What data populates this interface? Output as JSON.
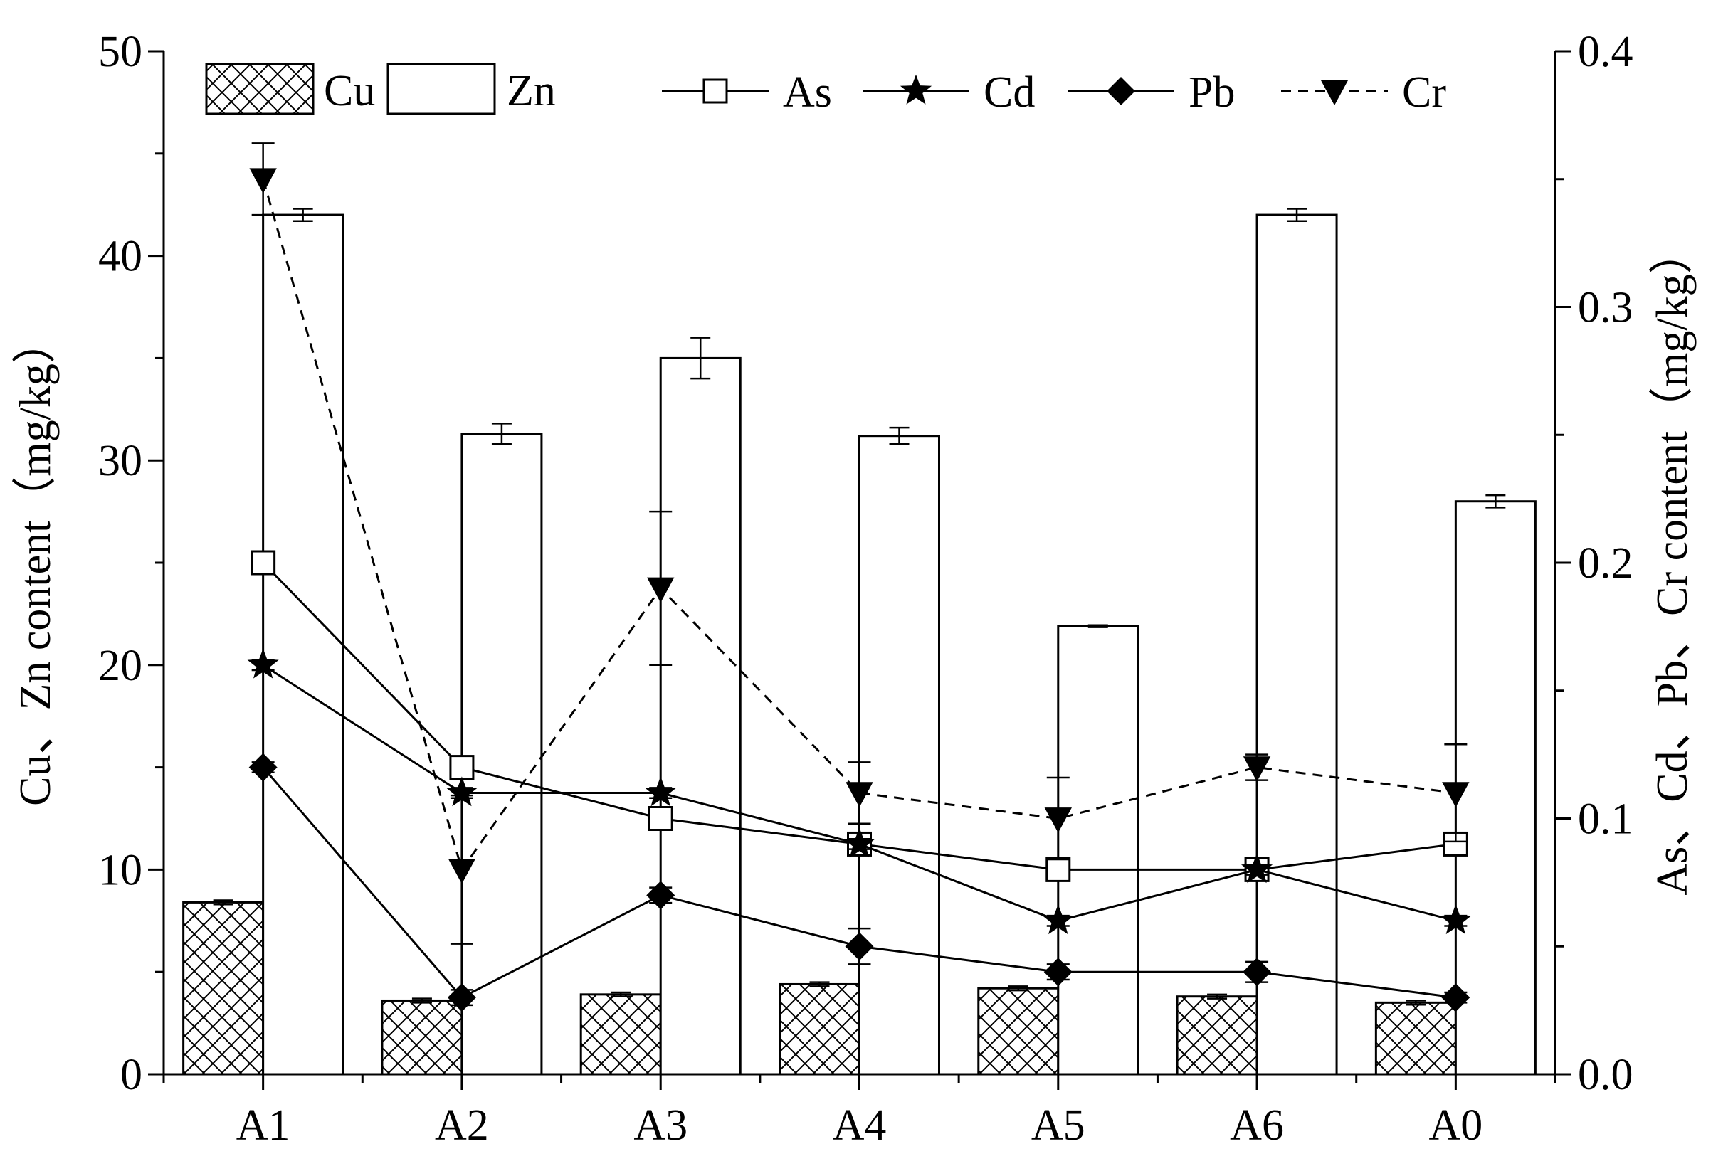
{
  "chart_data": {
    "type": "bar",
    "categories": [
      "A1",
      "A2",
      "A3",
      "A4",
      "A5",
      "A6",
      "A0"
    ],
    "left_axis": {
      "label": "Cu、Zn content（mg/kg）",
      "ylim": [
        0,
        50
      ],
      "ticks": [
        "0",
        "10",
        "20",
        "30",
        "40",
        "50"
      ]
    },
    "right_axis": {
      "label": "As、Cd、Pb、Cr content（mg/kg）",
      "ylim": [
        0.0,
        0.4
      ],
      "ticks": [
        "0.0",
        "0.1",
        "0.2",
        "0.3",
        "0.4"
      ]
    },
    "bar_series": [
      {
        "name": "Cu",
        "pattern": "crosshatch",
        "values": [
          8.4,
          3.6,
          3.9,
          4.4,
          4.2,
          3.8,
          3.5
        ],
        "errors": [
          0.1,
          0.1,
          0.1,
          0.1,
          0.1,
          0.1,
          0.1
        ]
      },
      {
        "name": "Zn",
        "pattern": "none",
        "values": [
          42.0,
          31.3,
          35.0,
          31.2,
          21.9,
          42.0,
          28.0
        ],
        "errors": [
          0.3,
          0.5,
          1.0,
          0.4,
          0.05,
          0.3,
          0.3
        ]
      }
    ],
    "line_series": [
      {
        "name": "As",
        "marker": "open-square",
        "style": "solid",
        "values": [
          0.2,
          0.12,
          0.1,
          0.09,
          0.08,
          0.08,
          0.09
        ],
        "errors": [
          0.002,
          0.002,
          0.003,
          0.002,
          0.002,
          0.002,
          0.003
        ]
      },
      {
        "name": "Cd",
        "marker": "star",
        "style": "solid",
        "values": [
          0.16,
          0.11,
          0.11,
          0.09,
          0.06,
          0.08,
          0.06
        ],
        "errors": [
          0.002,
          0.002,
          0.002,
          0.002,
          0.002,
          0.002,
          0.002
        ]
      },
      {
        "name": "Pb",
        "marker": "diamond",
        "style": "solid",
        "values": [
          0.12,
          0.03,
          0.07,
          0.05,
          0.04,
          0.04,
          0.03
        ],
        "errors": [
          0.002,
          0.003,
          0.003,
          0.007,
          0.003,
          0.004,
          0.002
        ]
      },
      {
        "name": "Cr",
        "marker": "down-triangle",
        "style": "dashed",
        "values": [
          0.35,
          0.08,
          0.19,
          0.11,
          0.1,
          0.12,
          0.11
        ],
        "errors": [
          0.014,
          0.029,
          0.03,
          0.012,
          0.016,
          0.005,
          0.019
        ]
      }
    ],
    "grid": false,
    "legend_placement": "top"
  }
}
